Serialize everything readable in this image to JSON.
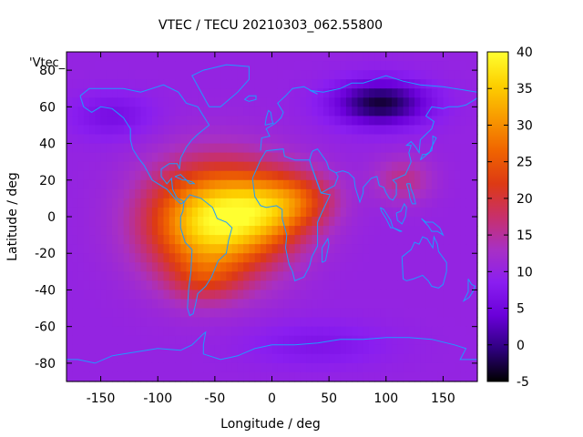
{
  "chart_data": {
    "type": "heatmap",
    "title": "VTEC / TECU 20210303_062.55800",
    "xlabel": "Longitude / deg",
    "ylabel": "Latitude / deg",
    "legend_entry": "'Vtec_",
    "xlim": [
      -180,
      180
    ],
    "ylim": [
      -90,
      90
    ],
    "xticks": [
      -150,
      -100,
      -50,
      0,
      50,
      100,
      150
    ],
    "xtick_labels": [
      "-150",
      "-100",
      "-50",
      "0",
      "50",
      "100",
      "150"
    ],
    "yticks": [
      -80,
      -60,
      -40,
      -20,
      0,
      20,
      40,
      60,
      80
    ],
    "ytick_labels": [
      "-80",
      "-60",
      "-40",
      "-20",
      "0",
      "20",
      "40",
      "60",
      "80"
    ],
    "colorbar": {
      "range": [
        -5,
        40
      ],
      "ticks": [
        -5,
        0,
        5,
        10,
        15,
        20,
        25,
        30,
        35,
        40
      ],
      "tick_labels": [
        "-5",
        "0",
        "5",
        "10",
        "15",
        "20",
        "25",
        "30",
        "35",
        "40"
      ],
      "palette": [
        "#000000",
        "#2f0080",
        "#6a00d9",
        "#8a1ef0",
        "#a830c4",
        "#c8306a",
        "#dd3a14",
        "#f06400",
        "#f89a00",
        "#fdd000",
        "#ffff30"
      ]
    },
    "grid": false,
    "background_level": 10,
    "features": [
      {
        "lon": -52,
        "lat": -3,
        "sx": 55,
        "sy": 30,
        "amp": 28
      },
      {
        "lon": 0,
        "lat": 5,
        "sx": 40,
        "sy": 20,
        "amp": 14
      },
      {
        "lon": 30,
        "lat": 10,
        "sx": 30,
        "sy": 14,
        "amp": 6
      },
      {
        "lon": -60,
        "lat": -35,
        "sx": 30,
        "sy": 12,
        "amp": 5
      },
      {
        "lon": 115,
        "lat": 20,
        "sx": 25,
        "sy": 12,
        "amp": 6
      },
      {
        "lon": 95,
        "lat": 62,
        "sx": 40,
        "sy": 12,
        "amp": -13
      },
      {
        "lon": -140,
        "lat": 55,
        "sx": 35,
        "sy": 12,
        "amp": -4
      },
      {
        "lon": 40,
        "lat": -70,
        "sx": 60,
        "sy": 12,
        "amp": -3
      }
    ],
    "coastlines": [
      [
        [
          -168,
          66
        ],
        [
          -160,
          70
        ],
        [
          -145,
          70
        ],
        [
          -130,
          70
        ],
        [
          -115,
          68
        ],
        [
          -95,
          72
        ],
        [
          -82,
          68
        ],
        [
          -75,
          62
        ],
        [
          -65,
          60
        ],
        [
          -60,
          55
        ],
        [
          -55,
          50
        ],
        [
          -65,
          45
        ],
        [
          -70,
          42
        ],
        [
          -75,
          38
        ],
        [
          -80,
          32
        ],
        [
          -81,
          26
        ],
        [
          -83,
          29
        ],
        [
          -90,
          29
        ],
        [
          -97,
          26
        ],
        [
          -97,
          22
        ],
        [
          -92,
          18
        ],
        [
          -88,
          21
        ],
        [
          -87,
          15
        ],
        [
          -83,
          10
        ],
        [
          -79,
          9
        ],
        [
          -77,
          8
        ],
        [
          -80,
          7
        ],
        [
          -85,
          10
        ],
        [
          -92,
          15
        ],
        [
          -105,
          20
        ],
        [
          -112,
          28
        ],
        [
          -117,
          32
        ],
        [
          -122,
          37
        ],
        [
          -124,
          42
        ],
        [
          -124,
          48
        ],
        [
          -130,
          54
        ],
        [
          -140,
          59
        ],
        [
          -150,
          60
        ],
        [
          -158,
          57
        ],
        [
          -165,
          60
        ],
        [
          -168,
          66
        ]
      ],
      [
        [
          -77,
          8
        ],
        [
          -72,
          12
        ],
        [
          -62,
          10
        ],
        [
          -52,
          5
        ],
        [
          -48,
          -1
        ],
        [
          -40,
          -3
        ],
        [
          -35,
          -6
        ],
        [
          -38,
          -13
        ],
        [
          -40,
          -20
        ],
        [
          -47,
          -24
        ],
        [
          -53,
          -33
        ],
        [
          -58,
          -38
        ],
        [
          -65,
          -42
        ],
        [
          -67,
          -48
        ],
        [
          -69,
          -53
        ],
        [
          -72,
          -54
        ],
        [
          -74,
          -50
        ],
        [
          -73,
          -40
        ],
        [
          -71,
          -30
        ],
        [
          -70,
          -18
        ],
        [
          -76,
          -14
        ],
        [
          -80,
          -6
        ],
        [
          -80,
          0
        ],
        [
          -78,
          3
        ],
        [
          -77,
          8
        ]
      ],
      [
        [
          -55,
          60
        ],
        [
          -45,
          60
        ],
        [
          -30,
          68
        ],
        [
          -20,
          75
        ],
        [
          -20,
          82
        ],
        [
          -40,
          83
        ],
        [
          -60,
          80
        ],
        [
          -70,
          77
        ],
        [
          -55,
          60
        ]
      ],
      [
        [
          -10,
          36
        ],
        [
          -9,
          43
        ],
        [
          -2,
          44
        ],
        [
          -5,
          48
        ],
        [
          3,
          51
        ],
        [
          8,
          54
        ],
        [
          10,
          57
        ],
        [
          5,
          62
        ],
        [
          12,
          66
        ],
        [
          18,
          70
        ],
        [
          28,
          71
        ],
        [
          40,
          67
        ],
        [
          33,
          69
        ],
        [
          45,
          68
        ],
        [
          60,
          70
        ],
        [
          70,
          73
        ],
        [
          80,
          73
        ],
        [
          100,
          77
        ],
        [
          115,
          74
        ],
        [
          130,
          72
        ],
        [
          150,
          71
        ],
        [
          160,
          70
        ],
        [
          170,
          69
        ],
        [
          180,
          68
        ]
      ],
      [
        [
          -17,
          21
        ],
        [
          -10,
          31
        ],
        [
          -5,
          36
        ],
        [
          10,
          37
        ],
        [
          11,
          33
        ],
        [
          20,
          31
        ],
        [
          30,
          31
        ],
        [
          33,
          31
        ],
        [
          35,
          27
        ],
        [
          38,
          22
        ],
        [
          43,
          13
        ],
        [
          51,
          12
        ],
        [
          45,
          4
        ],
        [
          40,
          -3
        ],
        [
          40,
          -10
        ],
        [
          40,
          -16
        ],
        [
          35,
          -22
        ],
        [
          33,
          -27
        ],
        [
          28,
          -33
        ],
        [
          20,
          -35
        ],
        [
          18,
          -30
        ],
        [
          15,
          -26
        ],
        [
          12,
          -17
        ],
        [
          13,
          -10
        ],
        [
          9,
          -1
        ],
        [
          9,
          4
        ],
        [
          4,
          6
        ],
        [
          -5,
          5
        ],
        [
          -10,
          6
        ],
        [
          -15,
          11
        ],
        [
          -17,
          21
        ]
      ],
      [
        [
          44,
          -25
        ],
        [
          47,
          -24
        ],
        [
          50,
          -15
        ],
        [
          49,
          -12
        ],
        [
          44,
          -17
        ],
        [
          44,
          -25
        ]
      ],
      [
        [
          33,
          31
        ],
        [
          35,
          35
        ],
        [
          36,
          36
        ],
        [
          40,
          37
        ],
        [
          48,
          30
        ],
        [
          50,
          26
        ],
        [
          56,
          24
        ],
        [
          58,
          22
        ],
        [
          55,
          17
        ],
        [
          52,
          16
        ],
        [
          43,
          13
        ],
        [
          40,
          18
        ],
        [
          35,
          27
        ],
        [
          33,
          31
        ]
      ],
      [
        [
          56,
          24
        ],
        [
          62,
          25
        ],
        [
          67,
          24
        ],
        [
          72,
          21
        ],
        [
          73,
          16
        ],
        [
          77,
          8
        ],
        [
          80,
          13
        ],
        [
          80,
          16
        ],
        [
          87,
          21
        ],
        [
          92,
          22
        ],
        [
          94,
          17
        ],
        [
          98,
          16
        ],
        [
          100,
          13
        ],
        [
          103,
          10
        ],
        [
          106,
          9
        ],
        [
          109,
          12
        ],
        [
          109,
          18
        ],
        [
          106,
          20
        ],
        [
          110,
          21
        ],
        [
          113,
          22
        ],
        [
          117,
          23
        ],
        [
          120,
          27
        ],
        [
          122,
          30
        ],
        [
          120,
          35
        ],
        [
          122,
          39
        ],
        [
          118,
          39
        ],
        [
          122,
          41
        ],
        [
          126,
          38
        ],
        [
          129,
          35
        ],
        [
          130,
          42
        ],
        [
          140,
          48
        ],
        [
          142,
          52
        ],
        [
          135,
          55
        ],
        [
          140,
          60
        ],
        [
          150,
          59
        ],
        [
          155,
          60
        ],
        [
          163,
          60
        ],
        [
          170,
          61
        ],
        [
          178,
          64
        ],
        [
          180,
          65
        ]
      ],
      [
        [
          130,
          31
        ],
        [
          132,
          34
        ],
        [
          135,
          34
        ],
        [
          140,
          36
        ],
        [
          141,
          40
        ],
        [
          141,
          44
        ],
        [
          144,
          43
        ],
        [
          140,
          38
        ],
        [
          138,
          35
        ],
        [
          130,
          31
        ]
      ],
      [
        [
          95,
          5
        ],
        [
          98,
          4
        ],
        [
          104,
          -2
        ],
        [
          106,
          -6
        ],
        [
          104,
          -6
        ],
        [
          100,
          -1
        ],
        [
          96,
          3
        ],
        [
          95,
          5
        ]
      ],
      [
        [
          106,
          -6
        ],
        [
          110,
          -7
        ],
        [
          114,
          -8
        ],
        [
          112,
          -8
        ],
        [
          106,
          -6
        ]
      ],
      [
        [
          109,
          2
        ],
        [
          110,
          -2
        ],
        [
          114,
          -4
        ],
        [
          117,
          0
        ],
        [
          118,
          5
        ],
        [
          116,
          7
        ],
        [
          113,
          3
        ],
        [
          109,
          2
        ]
      ],
      [
        [
          118,
          18
        ],
        [
          121,
          18
        ],
        [
          122,
          15
        ],
        [
          124,
          12
        ],
        [
          126,
          7
        ],
        [
          123,
          7
        ],
        [
          121,
          10
        ],
        [
          120,
          14
        ],
        [
          118,
          18
        ]
      ],
      [
        [
          131,
          -1
        ],
        [
          135,
          -3
        ],
        [
          141,
          -3
        ],
        [
          147,
          -6
        ],
        [
          150,
          -10
        ],
        [
          145,
          -8
        ],
        [
          140,
          -8
        ],
        [
          137,
          -5
        ],
        [
          131,
          -1
        ]
      ],
      [
        [
          114,
          -22
        ],
        [
          115,
          -34
        ],
        [
          118,
          -35
        ],
        [
          124,
          -34
        ],
        [
          132,
          -32
        ],
        [
          137,
          -35
        ],
        [
          140,
          -38
        ],
        [
          146,
          -39
        ],
        [
          150,
          -37
        ],
        [
          153,
          -30
        ],
        [
          153,
          -25
        ],
        [
          146,
          -19
        ],
        [
          145,
          -15
        ],
        [
          142,
          -11
        ],
        [
          141,
          -17
        ],
        [
          136,
          -12
        ],
        [
          132,
          -11
        ],
        [
          129,
          -15
        ],
        [
          125,
          -14
        ],
        [
          122,
          -18
        ],
        [
          114,
          -22
        ]
      ],
      [
        [
          172,
          -34
        ],
        [
          175,
          -37
        ],
        [
          178,
          -38
        ],
        [
          176,
          -41
        ],
        [
          173,
          -44
        ],
        [
          168,
          -46
        ],
        [
          172,
          -41
        ],
        [
          172,
          -34
        ]
      ],
      [
        [
          -180,
          -78
        ],
        [
          -170,
          -78
        ],
        [
          -155,
          -80
        ],
        [
          -140,
          -76
        ],
        [
          -120,
          -74
        ],
        [
          -100,
          -72
        ],
        [
          -80,
          -73
        ],
        [
          -70,
          -70
        ],
        [
          -60,
          -64
        ],
        [
          -58,
          -63
        ],
        [
          -60,
          -70
        ],
        [
          -60,
          -75
        ],
        [
          -45,
          -78
        ],
        [
          -30,
          -76
        ],
        [
          -15,
          -72
        ],
        [
          0,
          -70
        ],
        [
          20,
          -70
        ],
        [
          40,
          -69
        ],
        [
          60,
          -67
        ],
        [
          80,
          -67
        ],
        [
          100,
          -66
        ],
        [
          120,
          -66
        ],
        [
          140,
          -67
        ],
        [
          160,
          -70
        ],
        [
          170,
          -72
        ],
        [
          165,
          -78
        ],
        [
          180,
          -78
        ]
      ],
      [
        [
          -6,
          50
        ],
        [
          -5,
          54
        ],
        [
          -3,
          58
        ],
        [
          -1,
          57
        ],
        [
          0,
          53
        ],
        [
          1,
          51
        ],
        [
          -6,
          50
        ]
      ],
      [
        [
          -24,
          64
        ],
        [
          -20,
          66
        ],
        [
          -14,
          66
        ],
        [
          -14,
          64
        ],
        [
          -20,
          63
        ],
        [
          -24,
          64
        ]
      ],
      [
        [
          -85,
          22
        ],
        [
          -80,
          23
        ],
        [
          -75,
          20
        ],
        [
          -78,
          20
        ],
        [
          -85,
          22
        ]
      ],
      [
        [
          -75,
          20
        ],
        [
          -70,
          19
        ],
        [
          -68,
          18
        ],
        [
          -72,
          18
        ],
        [
          -75,
          20
        ]
      ]
    ]
  }
}
